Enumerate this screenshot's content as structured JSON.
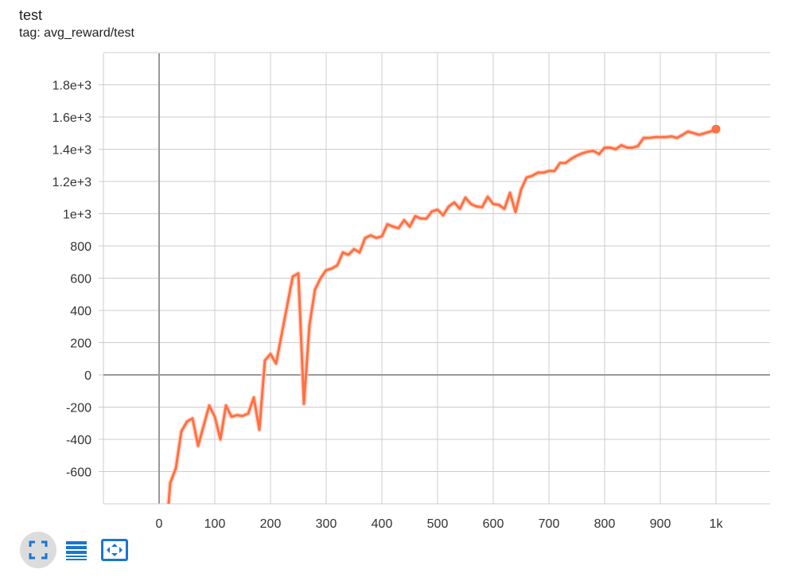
{
  "header": {
    "title": "test",
    "tag": "tag: avg_reward/test"
  },
  "toolbar": {
    "buttons": [
      {
        "icon": "fit-domain-icon",
        "active": true
      },
      {
        "icon": "toggle-log-scale-icon",
        "active": false
      },
      {
        "icon": "expand-chart-icon",
        "active": false
      }
    ]
  },
  "colors": {
    "line": "#ff7043",
    "smoothed_band": "#ffccbc",
    "grid": "#cccccc",
    "axis": "#999999",
    "icon": "#1976d2"
  },
  "chart_data": {
    "type": "line",
    "title": "test",
    "subtitle": "tag: avg_reward/test",
    "xlabel": "",
    "ylabel": "",
    "xlim": [
      -100,
      1100
    ],
    "ylim": [
      -800,
      2000
    ],
    "x_ticks": [
      0,
      100,
      200,
      300,
      400,
      500,
      600,
      700,
      800,
      900,
      1000
    ],
    "x_tick_labels": [
      "0",
      "100",
      "200",
      "300",
      "400",
      "500",
      "600",
      "700",
      "800",
      "900",
      "1k"
    ],
    "y_ticks": [
      1800,
      1600,
      1400,
      1200,
      1000,
      800,
      600,
      400,
      200,
      0,
      -200,
      -400,
      -600
    ],
    "y_tick_labels": [
      "1.8e+3",
      "1.6e+3",
      "1.4e+3",
      "1.2e+3",
      "1e+3",
      "800",
      "600",
      "400",
      "200",
      "0",
      "-200",
      "-400",
      "-600"
    ],
    "grid": true,
    "series": [
      {
        "x": [
          17,
          20,
          30,
          40,
          50,
          60,
          70,
          90,
          100,
          110,
          120,
          130,
          140,
          150,
          160,
          170,
          180,
          190,
          200,
          210,
          220,
          230,
          240,
          250,
          260,
          270,
          280,
          290,
          300,
          310,
          320,
          330,
          340,
          350,
          360,
          370,
          380,
          390,
          400,
          410,
          420,
          430,
          440,
          450,
          460,
          470,
          480,
          490,
          500,
          510,
          520,
          530,
          540,
          550,
          560,
          570,
          580,
          590,
          600,
          610,
          620,
          630,
          640,
          650,
          660,
          670,
          680,
          690,
          700,
          710,
          720,
          730,
          740,
          750,
          760,
          770,
          780,
          790,
          800,
          810,
          820,
          830,
          840,
          850,
          860,
          870,
          880,
          890,
          900,
          910,
          920,
          930,
          940,
          950,
          960,
          970,
          980,
          990,
          1000
        ],
        "values": [
          -800,
          -670,
          -580,
          -350,
          -290,
          -270,
          -440,
          -190,
          -260,
          -400,
          -190,
          -260,
          -250,
          -255,
          -240,
          -140,
          -340,
          90,
          130,
          70,
          250,
          430,
          610,
          630,
          -180,
          310,
          530,
          600,
          650,
          660,
          680,
          760,
          745,
          780,
          760,
          850,
          865,
          850,
          860,
          935,
          920,
          910,
          960,
          920,
          985,
          970,
          970,
          1015,
          1025,
          990,
          1045,
          1070,
          1030,
          1100,
          1060,
          1045,
          1040,
          1105,
          1060,
          1055,
          1030,
          1130,
          1010,
          1150,
          1225,
          1235,
          1255,
          1255,
          1265,
          1265,
          1315,
          1315,
          1340,
          1360,
          1375,
          1385,
          1390,
          1370,
          1410,
          1410,
          1400,
          1425,
          1410,
          1410,
          1420,
          1470,
          1470,
          1475,
          1475,
          1475,
          1480,
          1470,
          1490,
          1510,
          1500,
          1490,
          1500,
          1510,
          1525
        ]
      }
    ]
  }
}
